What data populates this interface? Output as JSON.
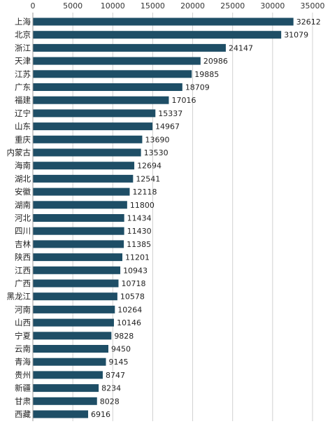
{
  "chart_data": {
    "type": "bar",
    "orientation": "horizontal",
    "title": "",
    "xlabel": "",
    "ylabel": "",
    "xlim": [
      0,
      35000
    ],
    "x_ticks": [
      "0",
      "5000",
      "10000",
      "15000",
      "20000",
      "25000",
      "30000",
      "35000"
    ],
    "x_axis_position": "top",
    "grid": true,
    "legend": "none",
    "bar_color": "#1e4e66",
    "categories": [
      "上海",
      "北京",
      "浙江",
      "天津",
      "江苏",
      "广东",
      "福建",
      "辽宁",
      "山东",
      "重庆",
      "内蒙古",
      "海南",
      "湖北",
      "安徽",
      "湖南",
      "河北",
      "四川",
      "吉林",
      "陕西",
      "江西",
      "广西",
      "黑龙江",
      "河南",
      "山西",
      "宁夏",
      "云南",
      "青海",
      "贵州",
      "新疆",
      "甘肃",
      "西藏"
    ],
    "values": [
      32612,
      31079,
      24147,
      20986,
      19885,
      18709,
      17016,
      15337,
      14967,
      13690,
      13530,
      12694,
      12541,
      12118,
      11800,
      11434,
      11430,
      11385,
      11201,
      10943,
      10718,
      10578,
      10264,
      10146,
      9828,
      9450,
      9145,
      8747,
      8234,
      8028,
      6916
    ],
    "data_labels": [
      "32612",
      "31079",
      "24147",
      "20986",
      "19885",
      "18709",
      "17016",
      "15337",
      "14967",
      "13690",
      "13530",
      "12694",
      "12541",
      "12118",
      "11800",
      "11434",
      "11430",
      "11385",
      "11201",
      "10943",
      "10718",
      "10578",
      "10264",
      "10146",
      "9828",
      "9450",
      "9145",
      "8747",
      "8234",
      "8028",
      "6916"
    ]
  }
}
